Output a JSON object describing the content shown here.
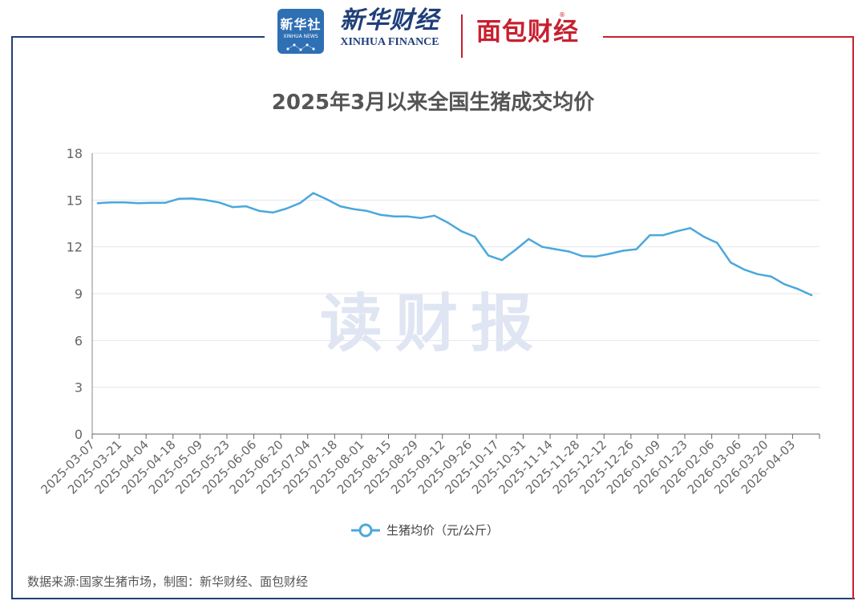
{
  "header": {
    "xinhua_logo_title": "新华社",
    "xinhua_logo_sub": "XINHUA NEWS",
    "brand_cn": "新华财经",
    "brand_en": "XINHUA FINANCE",
    "brand_mianbao": "面包财经",
    "registered_mark": "®"
  },
  "watermark": "读财报",
  "source_note": "数据来源:国家生猪市场，制图：新华财经、面包财经",
  "colors": {
    "line": "#4aa8dc",
    "frame_blue": "#1f3f7a",
    "frame_red": "#c8202f",
    "grid": "#e3e6ee",
    "watermark": "#dfe5f2"
  },
  "chart_data": {
    "type": "line",
    "title": "2025年3月以来全国生猪成交均价",
    "ylim": [
      0,
      18
    ],
    "yticks": [
      "0",
      "3",
      "6",
      "9",
      "12",
      "15",
      "18"
    ],
    "grid": true,
    "legend_position": "bottom",
    "xtick_labels": [
      "2025-03-07",
      "2025-03-21",
      "2025-04-04",
      "2025-04-18",
      "2025-05-09",
      "2025-05-23",
      "2025-06-06",
      "2025-06-20",
      "2025-07-04",
      "2025-07-18",
      "2025-08-01",
      "2025-08-15",
      "2025-08-29",
      "2025-09-12",
      "2025-09-26",
      "2025-10-17",
      "2025-10-31",
      "2025-11-14",
      "2025-11-28",
      "2025-12-12",
      "2025-12-26",
      "2026-01-09",
      "2026-01-23",
      "2026-02-06",
      "2026-03-06",
      "2026-03-20",
      "2026-04-03"
    ],
    "series": [
      {
        "name": "生猪均价（元/公斤）",
        "values": [
          14.8,
          14.85,
          14.85,
          14.8,
          14.82,
          14.82,
          15.08,
          15.1,
          15.0,
          14.85,
          14.55,
          14.6,
          14.3,
          14.2,
          14.45,
          14.8,
          15.45,
          15.05,
          14.6,
          14.42,
          14.3,
          14.05,
          13.95,
          13.95,
          13.85,
          14.0,
          13.55,
          13.0,
          12.65,
          11.45,
          11.15,
          11.8,
          12.5,
          12.0,
          11.85,
          11.7,
          11.4,
          11.38,
          11.55,
          11.75,
          11.85,
          12.75,
          12.75,
          13.0,
          13.2,
          12.65,
          12.25,
          11.0,
          10.55,
          10.25,
          10.1,
          9.6,
          9.3,
          8.9
        ]
      }
    ]
  }
}
